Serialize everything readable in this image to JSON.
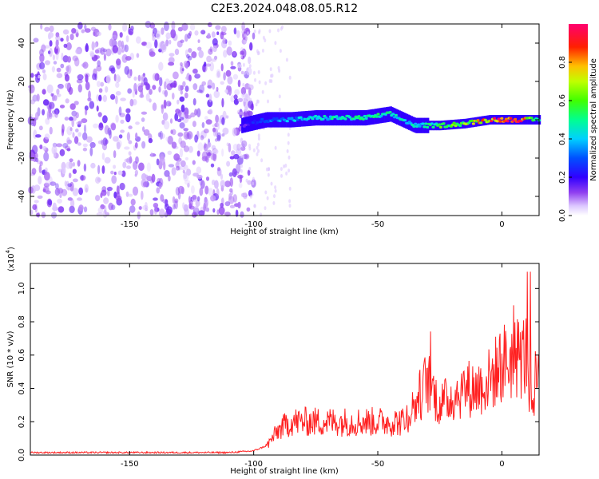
{
  "title": "C2E3.2024.048.08.05.R12",
  "colors": {
    "snr_line": "#ff2020",
    "colormap": [
      "#ffffff",
      "#e8d8ff",
      "#8a2be2",
      "#5a00ff",
      "#0000ff",
      "#00c8ff",
      "#00ff80",
      "#40ff00",
      "#ffff00",
      "#ff8000",
      "#ff0000",
      "#ff0080"
    ]
  },
  "chart_data": [
    {
      "type": "heatmap",
      "xlabel": "Height of straight line (km)",
      "ylabel": "Frequency (Hz)",
      "xlim": [
        -190,
        15
      ],
      "ylim": [
        -50,
        50
      ],
      "xticks": [
        -150,
        -100,
        -50,
        0
      ],
      "yticks": [
        -40,
        -20,
        0,
        20,
        40
      ],
      "grid": false,
      "colorbar": {
        "label": "Normalized spectral amplitude",
        "range": [
          0.0,
          1.0
        ],
        "ticks": [
          "0.0",
          "0.2",
          "0.4",
          "0.6",
          "0.8"
        ]
      },
      "ridge": {
        "x": [
          -105,
          -95,
          -85,
          -75,
          -65,
          -55,
          -45,
          -35,
          -25,
          -15,
          -5,
          5,
          15
        ],
        "frequency": [
          -3,
          0,
          0,
          1,
          1,
          1,
          3,
          -3,
          -3,
          -2,
          0,
          0,
          0
        ],
        "amplitude": [
          0.15,
          0.3,
          0.35,
          0.4,
          0.45,
          0.5,
          0.45,
          0.4,
          0.55,
          0.6,
          0.8,
          0.95,
          0.5
        ]
      }
    },
    {
      "type": "line",
      "xlabel": "Height of straight line (km)",
      "ylabel": "SNR (10 * v/v)",
      "scale_label": "(x10",
      "scale_exp": "4",
      "xlim": [
        -190,
        15
      ],
      "ylim": [
        0,
        1.15
      ],
      "xticks": [
        -150,
        -100,
        -50,
        0
      ],
      "yticks": [
        "0.0",
        "0.2",
        "0.4",
        "0.6",
        "0.8",
        "1.0"
      ],
      "grid": false,
      "series": [
        {
          "x": [
            -190,
            -170,
            -150,
            -130,
            -110,
            -100,
            -95,
            -90,
            -85,
            -80,
            -70,
            -60,
            -50,
            -40,
            -35,
            -30,
            -25,
            -20,
            -15,
            -10,
            -5,
            0,
            5,
            10,
            12,
            15
          ],
          "y": [
            0.01,
            0.01,
            0.01,
            0.01,
            0.01,
            0.02,
            0.05,
            0.15,
            0.2,
            0.2,
            0.2,
            0.2,
            0.2,
            0.2,
            0.3,
            0.45,
            0.3,
            0.35,
            0.4,
            0.4,
            0.45,
            0.55,
            0.58,
            0.6,
            0.3,
            0.58
          ]
        }
      ]
    }
  ]
}
